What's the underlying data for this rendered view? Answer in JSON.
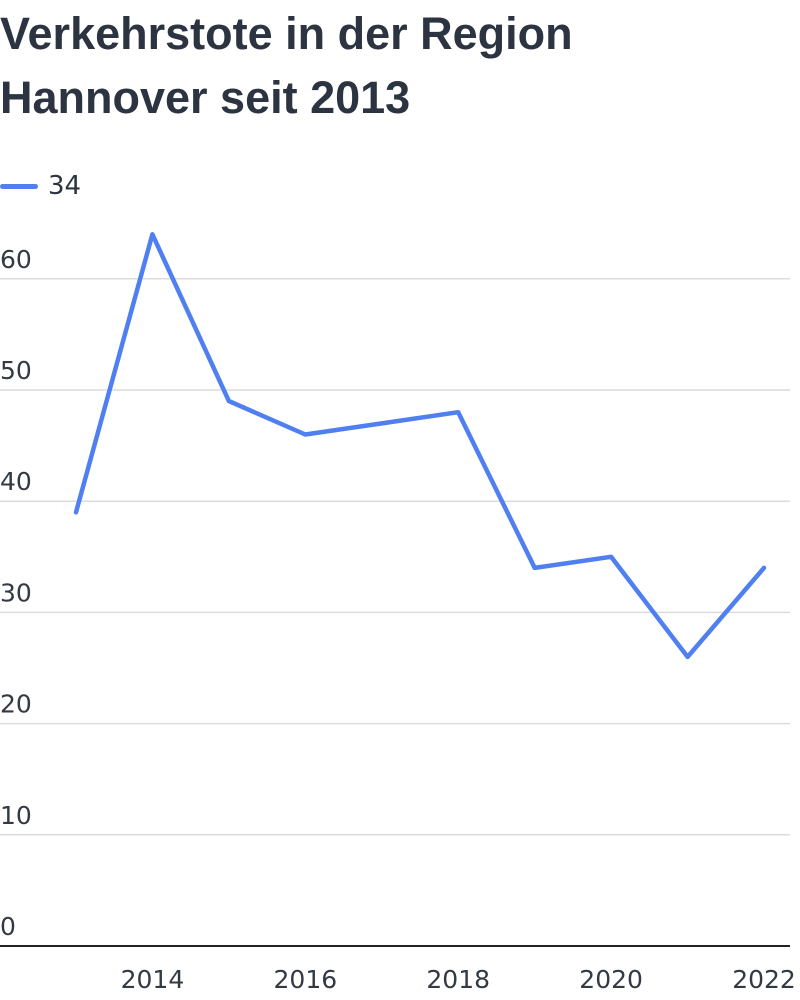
{
  "chart_data": {
    "type": "line",
    "title": "Verkehrstote in der Region Hannover seit 2013",
    "x": [
      2013,
      2014,
      2015,
      2016,
      2017,
      2018,
      2019,
      2020,
      2021,
      2022
    ],
    "series": [
      {
        "name": "34",
        "values": [
          39,
          64,
          49,
          46,
          47,
          48,
          34,
          35,
          26,
          34
        ],
        "color": "#4f7ff0"
      }
    ],
    "xticks": [
      2014,
      2016,
      2018,
      2020,
      2022
    ],
    "yticks": [
      0,
      10,
      20,
      30,
      40,
      50,
      60
    ],
    "xlim": [
      2013,
      2022
    ],
    "ylim": [
      0,
      60
    ],
    "xlabel": "",
    "ylabel": "",
    "grid": true,
    "legend": "top-left"
  }
}
